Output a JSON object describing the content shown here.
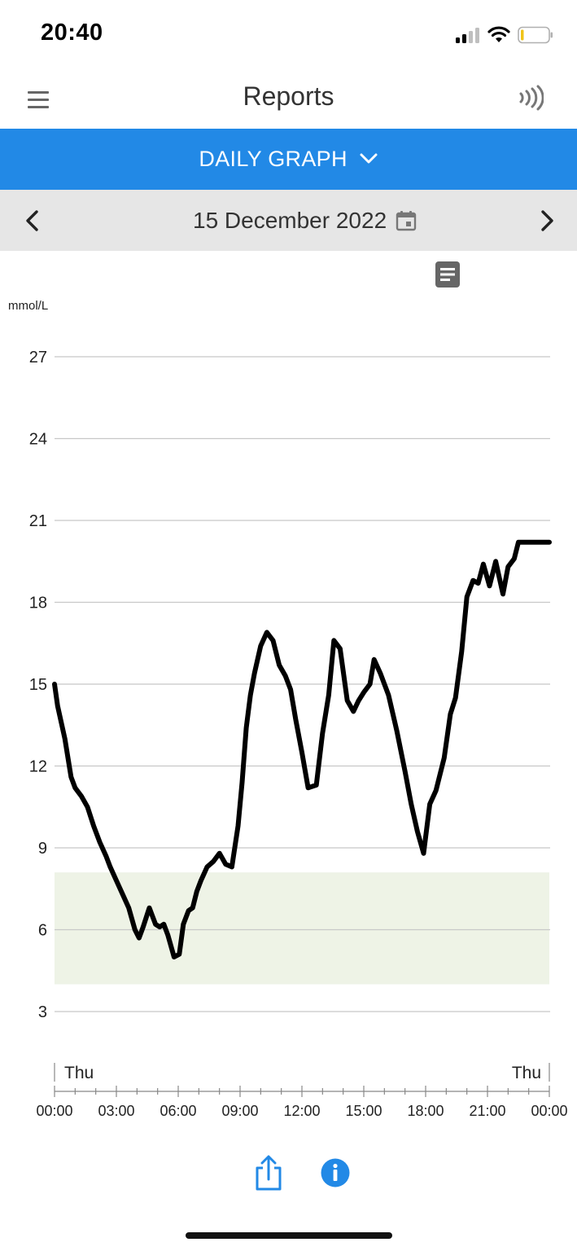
{
  "status_bar": {
    "time": "20:40"
  },
  "header": {
    "title": "Reports"
  },
  "report_selector": {
    "label": "DAILY GRAPH"
  },
  "date_nav": {
    "date": "15 December 2022"
  },
  "colors": {
    "accent": "#2289e6",
    "target_band": "#eef3e6",
    "line": "#000000",
    "gridline": "#c8c8c8"
  },
  "icons": {
    "menu": "hamburger-menu-icon",
    "sensor": "nfc-scan-icon",
    "dropdown": "chevron-down-icon",
    "prev": "chevron-left-icon",
    "next": "chevron-right-icon",
    "calendar": "calendar-icon",
    "notes": "notes-icon",
    "share": "share-icon",
    "info": "info-icon"
  },
  "chart_data": {
    "type": "line",
    "ylabel": "mmol/L",
    "ylim": [
      0,
      28
    ],
    "yticks": [
      "27",
      "24",
      "21",
      "18",
      "15",
      "12",
      "9",
      "6",
      "3"
    ],
    "xticks": [
      "00:00",
      "03:00",
      "06:00",
      "09:00",
      "12:00",
      "15:00",
      "18:00",
      "21:00",
      "00:00"
    ],
    "day_labels": {
      "start": "Thu",
      "end": "Thu"
    },
    "target_range": [
      4.0,
      8.1
    ],
    "series": [
      {
        "x": [
          0,
          0.15,
          0.5,
          0.8,
          1.0,
          1.3,
          1.6,
          1.9,
          2.2,
          2.5,
          2.7,
          3.0,
          3.3,
          3.6,
          3.9,
          4.1,
          4.3,
          4.6,
          4.9,
          5.1,
          5.3,
          5.5,
          5.8,
          6.05,
          6.25,
          6.5,
          6.7,
          6.9,
          7.1,
          7.4,
          7.7,
          8.0,
          8.3,
          8.6,
          8.9,
          9.1,
          9.3,
          9.5,
          9.7,
          10.0,
          10.3,
          10.6,
          10.9,
          11.2,
          11.45,
          11.7,
          12.0,
          12.3,
          12.7,
          13.0,
          13.3,
          13.55,
          13.85,
          14.2,
          14.5,
          14.75,
          15.0,
          15.3,
          15.5,
          15.8,
          16.2,
          16.6,
          17.0,
          17.3,
          17.6,
          17.9,
          18.2,
          18.5,
          18.9,
          19.2,
          19.45,
          19.75,
          20.0,
          20.3,
          20.55,
          20.8,
          21.1,
          21.4,
          21.75,
          22.0,
          22.3,
          22.5,
          22.7,
          22.9,
          23.1,
          23.3,
          23.45,
          23.6,
          23.8,
          24.0
        ],
        "y": [
          15.0,
          14.2,
          13.0,
          11.6,
          11.2,
          10.9,
          10.5,
          9.8,
          9.2,
          8.7,
          8.3,
          7.8,
          7.3,
          6.8,
          6.0,
          5.7,
          6.1,
          6.8,
          6.2,
          6.1,
          6.2,
          5.8,
          5.0,
          5.1,
          6.2,
          6.7,
          6.8,
          7.4,
          7.8,
          8.3,
          8.5,
          8.8,
          8.4,
          8.3,
          9.8,
          11.4,
          13.4,
          14.6,
          15.4,
          16.4,
          16.9,
          16.6,
          15.7,
          15.3,
          14.8,
          13.7,
          12.5,
          11.2,
          11.3,
          13.2,
          14.6,
          16.6,
          16.3,
          14.4,
          14.0,
          14.4,
          14.7,
          15.0,
          15.9,
          15.4,
          14.6,
          13.3,
          11.8,
          10.6,
          9.6,
          8.8,
          10.6,
          11.1,
          12.3,
          13.9,
          14.5,
          16.2,
          18.2,
          18.8,
          18.7,
          19.4,
          18.6,
          19.5,
          18.3,
          19.3,
          19.6,
          20.2,
          20.2,
          20.2,
          20.2,
          20.2,
          20.2,
          20.2,
          20.2,
          20.2
        ]
      }
    ],
    "grid": true,
    "legend": "none"
  }
}
